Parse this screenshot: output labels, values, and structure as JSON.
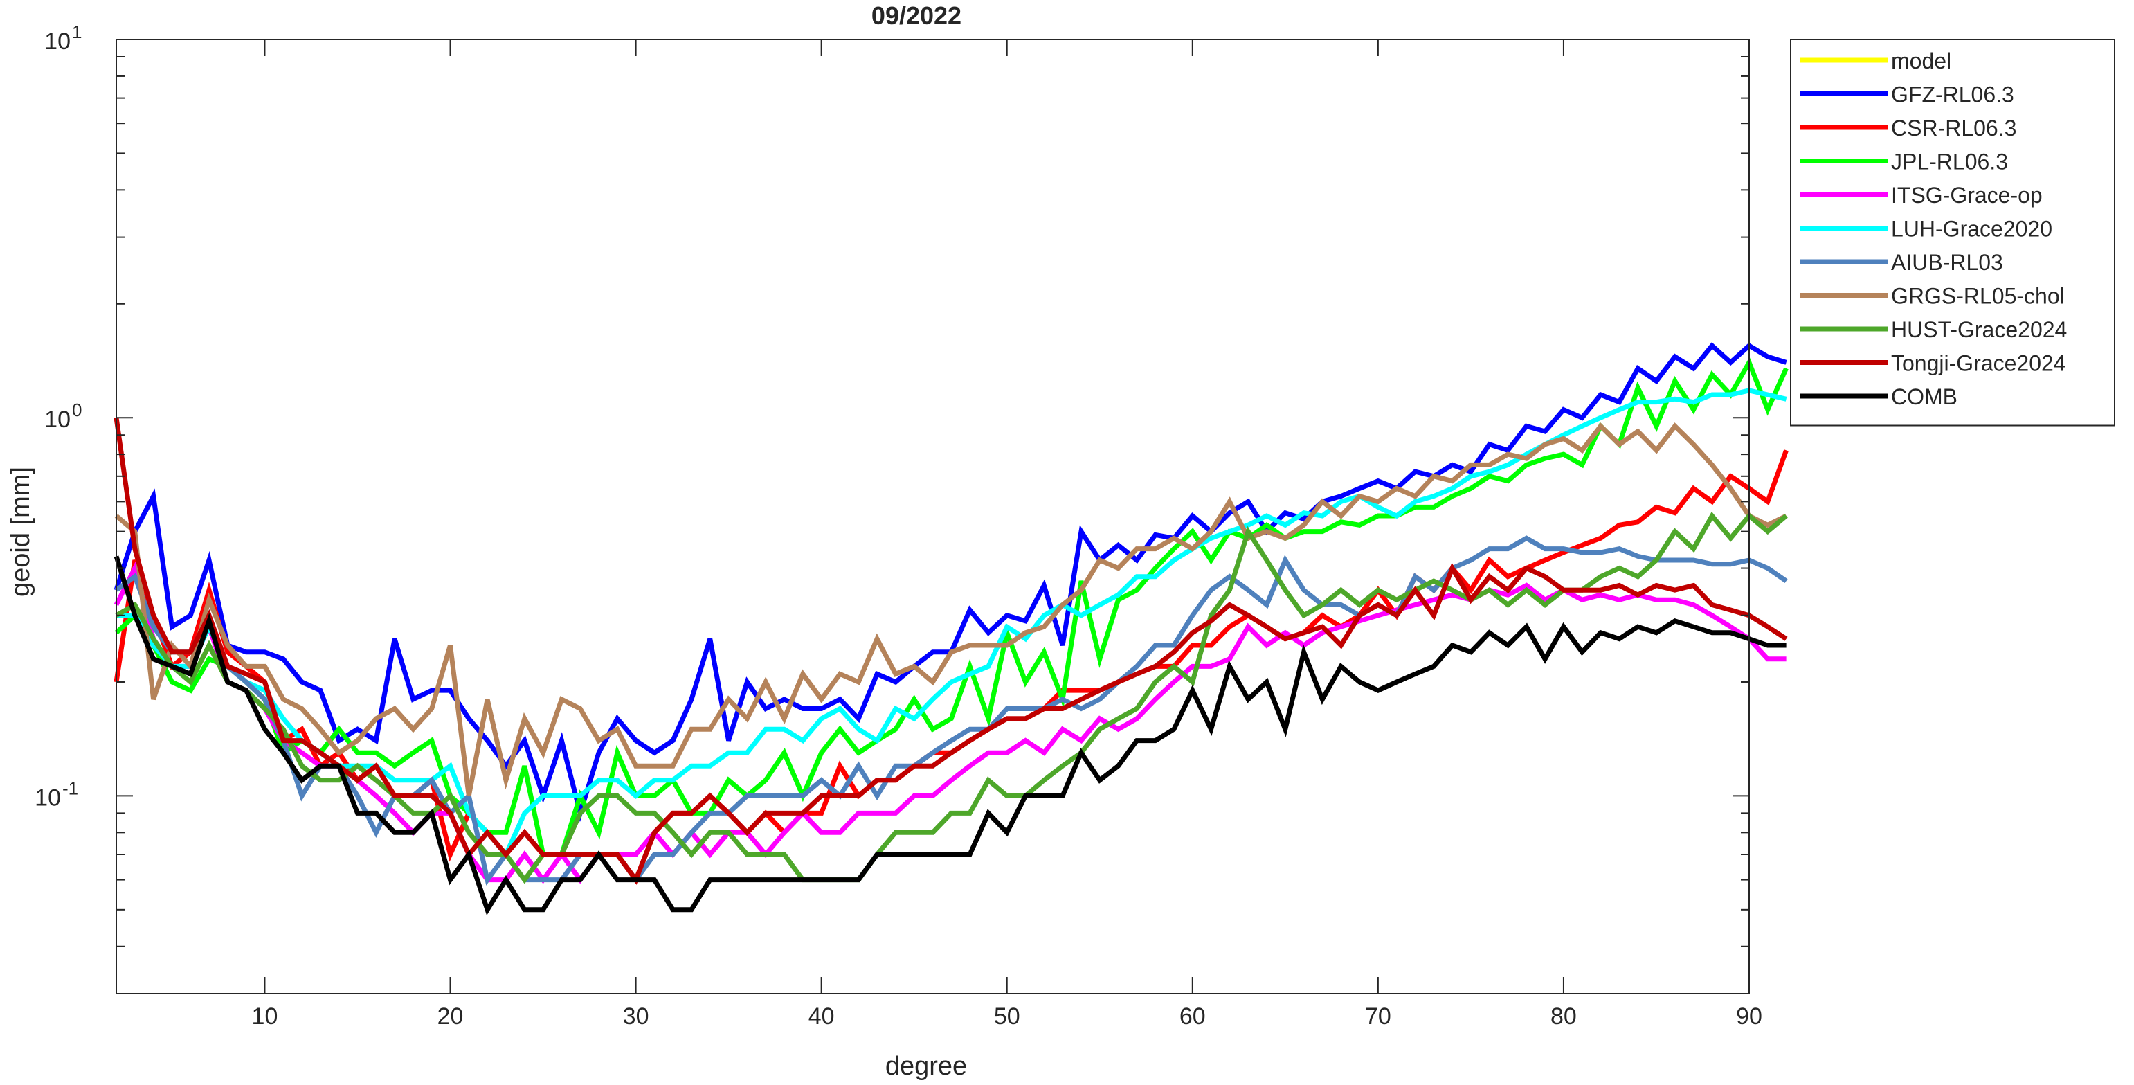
{
  "chart_data": {
    "type": "line",
    "title": "09/2022",
    "xlabel": "degree",
    "ylabel": "geoid [mm]",
    "xlim": [
      2,
      90
    ],
    "ylim": [
      0.03,
      10
    ],
    "yscale": "log",
    "grid": false,
    "legend_position": "outside-top-right",
    "x_ticks": [
      "10",
      "20",
      "30",
      "40",
      "50",
      "60",
      "70",
      "80",
      "90"
    ],
    "y_ticks": [
      {
        "base": "10",
        "exp": "-1"
      },
      {
        "base": "10",
        "exp": "0"
      },
      {
        "base": "10",
        "exp": "1"
      }
    ],
    "x_start": 2,
    "series": [
      {
        "name": "model",
        "color": "#ffff00",
        "values": []
      },
      {
        "name": "GFZ-RL06.3",
        "color": "#0000ff",
        "values": [
          0.35,
          0.5,
          0.62,
          0.28,
          0.3,
          0.42,
          0.25,
          0.24,
          0.24,
          0.23,
          0.2,
          0.19,
          0.14,
          0.15,
          0.14,
          0.26,
          0.18,
          0.19,
          0.19,
          0.16,
          0.14,
          0.12,
          0.14,
          0.1,
          0.14,
          0.09,
          0.13,
          0.16,
          0.14,
          0.13,
          0.14,
          0.18,
          0.26,
          0.14,
          0.2,
          0.17,
          0.18,
          0.17,
          0.17,
          0.18,
          0.16,
          0.21,
          0.2,
          0.22,
          0.24,
          0.24,
          0.31,
          0.27,
          0.3,
          0.29,
          0.36,
          0.25,
          0.5,
          0.42,
          0.46,
          0.42,
          0.49,
          0.48,
          0.55,
          0.5,
          0.56,
          0.6,
          0.5,
          0.56,
          0.54,
          0.6,
          0.62,
          0.65,
          0.68,
          0.65,
          0.72,
          0.7,
          0.75,
          0.72,
          0.85,
          0.82,
          0.95,
          0.92,
          1.05,
          1.0,
          1.15,
          1.1,
          1.35,
          1.25,
          1.45,
          1.35,
          1.55,
          1.4,
          1.55,
          1.45,
          1.4
        ]
      },
      {
        "name": "CSR-RL06.3",
        "color": "#ff0000",
        "values": [
          0.2,
          0.42,
          0.3,
          0.22,
          0.24,
          0.35,
          0.24,
          0.22,
          0.2,
          0.14,
          0.15,
          0.12,
          0.13,
          0.11,
          0.12,
          0.1,
          0.1,
          0.11,
          0.07,
          0.09,
          0.08,
          0.07,
          0.08,
          0.07,
          0.07,
          0.07,
          0.07,
          0.07,
          0.06,
          0.08,
          0.09,
          0.09,
          0.1,
          0.09,
          0.08,
          0.09,
          0.08,
          0.09,
          0.09,
          0.12,
          0.1,
          0.11,
          0.11,
          0.12,
          0.13,
          0.13,
          0.14,
          0.15,
          0.16,
          0.16,
          0.17,
          0.19,
          0.19,
          0.19,
          0.2,
          0.21,
          0.22,
          0.22,
          0.25,
          0.25,
          0.28,
          0.3,
          0.28,
          0.26,
          0.27,
          0.3,
          0.28,
          0.3,
          0.35,
          0.3,
          0.38,
          0.35,
          0.4,
          0.35,
          0.42,
          0.38,
          0.4,
          0.42,
          0.44,
          0.46,
          0.48,
          0.52,
          0.53,
          0.58,
          0.56,
          0.65,
          0.6,
          0.7,
          0.65,
          0.6,
          0.82
        ]
      },
      {
        "name": "JPL-RL06.3",
        "color": "#00ff00",
        "values": [
          0.27,
          0.3,
          0.25,
          0.2,
          0.19,
          0.23,
          0.22,
          0.2,
          0.18,
          0.13,
          0.14,
          0.13,
          0.15,
          0.13,
          0.13,
          0.12,
          0.13,
          0.14,
          0.1,
          0.09,
          0.08,
          0.08,
          0.12,
          0.07,
          0.07,
          0.1,
          0.08,
          0.13,
          0.1,
          0.1,
          0.11,
          0.09,
          0.09,
          0.11,
          0.1,
          0.11,
          0.13,
          0.1,
          0.13,
          0.15,
          0.13,
          0.14,
          0.15,
          0.18,
          0.15,
          0.16,
          0.22,
          0.16,
          0.27,
          0.2,
          0.24,
          0.18,
          0.37,
          0.23,
          0.33,
          0.35,
          0.4,
          0.45,
          0.5,
          0.42,
          0.5,
          0.48,
          0.52,
          0.48,
          0.5,
          0.5,
          0.53,
          0.52,
          0.55,
          0.55,
          0.58,
          0.58,
          0.62,
          0.65,
          0.7,
          0.68,
          0.75,
          0.78,
          0.8,
          0.75,
          0.95,
          0.85,
          1.2,
          0.95,
          1.25,
          1.05,
          1.3,
          1.15,
          1.4,
          1.05,
          1.35
        ]
      },
      {
        "name": "ITSG-Grace-op",
        "color": "#ff00ff",
        "values": [
          0.32,
          0.4,
          0.26,
          0.22,
          0.22,
          0.28,
          0.2,
          0.19,
          0.17,
          0.14,
          0.13,
          0.12,
          0.12,
          0.11,
          0.1,
          0.09,
          0.08,
          0.09,
          0.09,
          0.07,
          0.06,
          0.06,
          0.07,
          0.06,
          0.07,
          0.06,
          0.07,
          0.07,
          0.07,
          0.08,
          0.07,
          0.08,
          0.07,
          0.08,
          0.08,
          0.07,
          0.08,
          0.09,
          0.08,
          0.08,
          0.09,
          0.09,
          0.09,
          0.1,
          0.1,
          0.11,
          0.12,
          0.13,
          0.13,
          0.14,
          0.13,
          0.15,
          0.14,
          0.16,
          0.15,
          0.16,
          0.18,
          0.2,
          0.22,
          0.22,
          0.23,
          0.28,
          0.25,
          0.27,
          0.25,
          0.27,
          0.28,
          0.29,
          0.3,
          0.31,
          0.32,
          0.33,
          0.34,
          0.33,
          0.35,
          0.34,
          0.36,
          0.33,
          0.35,
          0.33,
          0.34,
          0.33,
          0.34,
          0.33,
          0.33,
          0.32,
          0.3,
          0.28,
          0.26,
          0.23,
          0.23
        ]
      },
      {
        "name": "LUH-Grace2020",
        "color": "#00ffff",
        "values": [
          0.3,
          0.3,
          0.25,
          0.22,
          0.22,
          0.28,
          0.22,
          0.2,
          0.19,
          0.16,
          0.14,
          0.13,
          0.12,
          0.12,
          0.12,
          0.11,
          0.11,
          0.11,
          0.12,
          0.09,
          0.08,
          0.07,
          0.09,
          0.1,
          0.1,
          0.1,
          0.11,
          0.11,
          0.1,
          0.11,
          0.11,
          0.12,
          0.12,
          0.13,
          0.13,
          0.15,
          0.15,
          0.14,
          0.16,
          0.17,
          0.15,
          0.14,
          0.17,
          0.16,
          0.18,
          0.2,
          0.21,
          0.22,
          0.28,
          0.26,
          0.3,
          0.32,
          0.3,
          0.32,
          0.34,
          0.38,
          0.38,
          0.42,
          0.45,
          0.48,
          0.5,
          0.52,
          0.55,
          0.52,
          0.56,
          0.55,
          0.6,
          0.62,
          0.58,
          0.55,
          0.6,
          0.62,
          0.65,
          0.7,
          0.72,
          0.75,
          0.8,
          0.85,
          0.9,
          0.95,
          1.0,
          1.05,
          1.1,
          1.1,
          1.12,
          1.1,
          1.15,
          1.15,
          1.18,
          1.15,
          1.12
        ]
      },
      {
        "name": "AIUB-RL03",
        "color": "#4f81bd",
        "values": [
          0.35,
          0.38,
          0.28,
          0.24,
          0.24,
          0.3,
          0.22,
          0.2,
          0.18,
          0.14,
          0.1,
          0.12,
          0.12,
          0.1,
          0.08,
          0.1,
          0.1,
          0.11,
          0.09,
          0.1,
          0.06,
          0.07,
          0.06,
          0.06,
          0.06,
          0.07,
          0.07,
          0.07,
          0.06,
          0.07,
          0.07,
          0.08,
          0.09,
          0.09,
          0.1,
          0.1,
          0.1,
          0.1,
          0.11,
          0.1,
          0.12,
          0.1,
          0.12,
          0.12,
          0.13,
          0.14,
          0.15,
          0.15,
          0.17,
          0.17,
          0.17,
          0.18,
          0.17,
          0.18,
          0.2,
          0.22,
          0.25,
          0.25,
          0.3,
          0.35,
          0.38,
          0.35,
          0.32,
          0.42,
          0.35,
          0.32,
          0.32,
          0.3,
          0.32,
          0.3,
          0.38,
          0.35,
          0.4,
          0.42,
          0.45,
          0.45,
          0.48,
          0.45,
          0.45,
          0.44,
          0.44,
          0.45,
          0.43,
          0.42,
          0.42,
          0.42,
          0.41,
          0.41,
          0.42,
          0.4,
          0.37
        ]
      },
      {
        "name": "GRGS-RL05-chol",
        "color": "#b5835a",
        "values": [
          0.55,
          0.5,
          0.18,
          0.25,
          0.22,
          0.33,
          0.25,
          0.22,
          0.22,
          0.18,
          0.17,
          0.15,
          0.13,
          0.14,
          0.16,
          0.17,
          0.15,
          0.17,
          0.25,
          0.1,
          0.18,
          0.11,
          0.16,
          0.13,
          0.18,
          0.17,
          0.14,
          0.15,
          0.12,
          0.12,
          0.12,
          0.15,
          0.15,
          0.18,
          0.16,
          0.2,
          0.16,
          0.21,
          0.18,
          0.21,
          0.2,
          0.26,
          0.21,
          0.22,
          0.2,
          0.24,
          0.25,
          0.25,
          0.25,
          0.27,
          0.28,
          0.32,
          0.35,
          0.42,
          0.4,
          0.45,
          0.45,
          0.48,
          0.45,
          0.5,
          0.6,
          0.48,
          0.5,
          0.48,
          0.52,
          0.6,
          0.55,
          0.62,
          0.6,
          0.65,
          0.62,
          0.7,
          0.68,
          0.75,
          0.75,
          0.8,
          0.78,
          0.85,
          0.88,
          0.82,
          0.95,
          0.85,
          0.92,
          0.82,
          0.95,
          0.85,
          0.75,
          0.65,
          0.55,
          0.52,
          0.55
        ]
      },
      {
        "name": "HUST-Grace2024",
        "color": "#4ea72a",
        "values": [
          0.3,
          0.32,
          0.26,
          0.22,
          0.2,
          0.25,
          0.2,
          0.19,
          0.17,
          0.15,
          0.12,
          0.11,
          0.11,
          0.12,
          0.11,
          0.1,
          0.09,
          0.09,
          0.1,
          0.08,
          0.07,
          0.07,
          0.06,
          0.07,
          0.07,
          0.09,
          0.1,
          0.1,
          0.09,
          0.09,
          0.08,
          0.07,
          0.08,
          0.08,
          0.07,
          0.07,
          0.07,
          0.06,
          0.06,
          0.06,
          0.06,
          0.07,
          0.08,
          0.08,
          0.08,
          0.09,
          0.09,
          0.11,
          0.1,
          0.1,
          0.11,
          0.12,
          0.13,
          0.15,
          0.16,
          0.17,
          0.2,
          0.22,
          0.2,
          0.3,
          0.35,
          0.5,
          0.42,
          0.35,
          0.3,
          0.32,
          0.35,
          0.32,
          0.35,
          0.33,
          0.35,
          0.37,
          0.35,
          0.33,
          0.35,
          0.32,
          0.35,
          0.32,
          0.35,
          0.35,
          0.38,
          0.4,
          0.38,
          0.42,
          0.5,
          0.45,
          0.55,
          0.48,
          0.55,
          0.5,
          0.55
        ]
      },
      {
        "name": "Tongji-Grace2024",
        "color": "#c00000",
        "values": [
          1.0,
          0.45,
          0.3,
          0.24,
          0.24,
          0.3,
          0.22,
          0.21,
          0.2,
          0.14,
          0.14,
          0.13,
          0.12,
          0.11,
          0.12,
          0.1,
          0.1,
          0.1,
          0.09,
          0.07,
          0.08,
          0.07,
          0.08,
          0.07,
          0.07,
          0.07,
          0.07,
          0.07,
          0.06,
          0.08,
          0.09,
          0.09,
          0.1,
          0.09,
          0.08,
          0.09,
          0.09,
          0.09,
          0.1,
          0.1,
          0.1,
          0.11,
          0.11,
          0.12,
          0.12,
          0.13,
          0.14,
          0.15,
          0.16,
          0.16,
          0.17,
          0.17,
          0.18,
          0.19,
          0.2,
          0.21,
          0.22,
          0.24,
          0.27,
          0.29,
          0.32,
          0.3,
          0.28,
          0.26,
          0.27,
          0.28,
          0.25,
          0.3,
          0.32,
          0.3,
          0.35,
          0.3,
          0.4,
          0.33,
          0.38,
          0.35,
          0.4,
          0.38,
          0.35,
          0.35,
          0.35,
          0.36,
          0.34,
          0.36,
          0.35,
          0.36,
          0.32,
          0.31,
          0.3,
          0.28,
          0.26
        ]
      },
      {
        "name": "COMB",
        "color": "#000000",
        "values": [
          0.43,
          0.3,
          0.23,
          0.22,
          0.21,
          0.29,
          0.2,
          0.19,
          0.15,
          0.13,
          0.11,
          0.12,
          0.12,
          0.09,
          0.09,
          0.08,
          0.08,
          0.09,
          0.06,
          0.07,
          0.05,
          0.06,
          0.05,
          0.05,
          0.06,
          0.06,
          0.07,
          0.06,
          0.06,
          0.06,
          0.05,
          0.05,
          0.06,
          0.06,
          0.06,
          0.06,
          0.06,
          0.06,
          0.06,
          0.06,
          0.06,
          0.07,
          0.07,
          0.07,
          0.07,
          0.07,
          0.07,
          0.09,
          0.08,
          0.1,
          0.1,
          0.1,
          0.13,
          0.11,
          0.12,
          0.14,
          0.14,
          0.15,
          0.19,
          0.15,
          0.22,
          0.18,
          0.2,
          0.15,
          0.24,
          0.18,
          0.22,
          0.2,
          0.19,
          0.2,
          0.21,
          0.22,
          0.25,
          0.24,
          0.27,
          0.25,
          0.28,
          0.23,
          0.28,
          0.24,
          0.27,
          0.26,
          0.28,
          0.27,
          0.29,
          0.28,
          0.27,
          0.27,
          0.26,
          0.25,
          0.25
        ]
      }
    ]
  }
}
